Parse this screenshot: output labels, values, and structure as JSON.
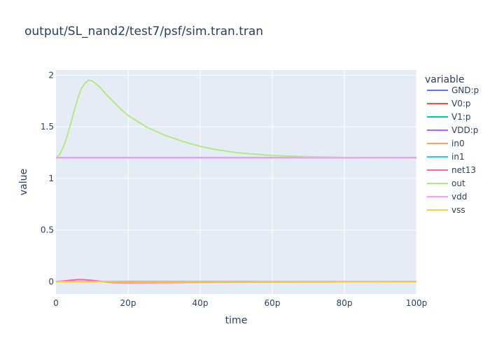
{
  "chart_data": {
    "type": "line",
    "title": "output/SL_nand2/test7/psf/sim.tran.tran",
    "xlabel": "time",
    "ylabel": "value",
    "xlim": [
      0,
      100
    ],
    "ylim": [
      -0.12,
      2.05
    ],
    "x_ticks": [
      {
        "value": 0,
        "label": "0"
      },
      {
        "value": 20,
        "label": "20p"
      },
      {
        "value": 40,
        "label": "40p"
      },
      {
        "value": 60,
        "label": "60p"
      },
      {
        "value": 80,
        "label": "80p"
      },
      {
        "value": 100,
        "label": "100p"
      }
    ],
    "y_ticks": [
      {
        "value": 0,
        "label": "0"
      },
      {
        "value": 0.5,
        "label": "0.5"
      },
      {
        "value": 1,
        "label": "1"
      },
      {
        "value": 1.5,
        "label": "1.5"
      },
      {
        "value": 2,
        "label": "2"
      }
    ],
    "grid": true,
    "legend_title": "variable",
    "legend_position": "right",
    "series": [
      {
        "name": "GND:p",
        "color": "#636efa",
        "x": [
          0,
          100
        ],
        "y": [
          0,
          0
        ]
      },
      {
        "name": "V0:p",
        "color": "#EF553B",
        "x": [
          0,
          100
        ],
        "y": [
          1.2,
          1.2
        ]
      },
      {
        "name": "V1:p",
        "color": "#00cc96",
        "x": [
          0,
          100
        ],
        "y": [
          1.2,
          1.2
        ]
      },
      {
        "name": "VDD:p",
        "color": "#ab63fa",
        "x": [
          0,
          100
        ],
        "y": [
          1.2,
          1.2
        ]
      },
      {
        "name": "in0",
        "color": "#FFA15A",
        "x": [
          0,
          100
        ],
        "y": [
          1.2,
          1.2
        ]
      },
      {
        "name": "in1",
        "color": "#19d3f3",
        "x": [
          0,
          100
        ],
        "y": [
          1.2,
          1.2
        ]
      },
      {
        "name": "net13",
        "color": "#FF6692",
        "x": [
          0,
          3,
          6,
          8,
          10,
          12,
          14,
          16,
          20,
          30,
          50,
          100
        ],
        "y": [
          0,
          0.01,
          0.02,
          0.018,
          0.012,
          0.005,
          -0.005,
          -0.008,
          -0.01,
          -0.008,
          -0.005,
          0
        ]
      },
      {
        "name": "out",
        "color": "#B6E880",
        "x": [
          0,
          1,
          2,
          3,
          4,
          5,
          6,
          7,
          8,
          9,
          10,
          12,
          14,
          16,
          18,
          20,
          25,
          30,
          35,
          40,
          45,
          50,
          55,
          60,
          70,
          80,
          90,
          100
        ],
        "y": [
          1.2,
          1.23,
          1.3,
          1.4,
          1.52,
          1.65,
          1.77,
          1.87,
          1.92,
          1.95,
          1.945,
          1.89,
          1.81,
          1.74,
          1.67,
          1.61,
          1.5,
          1.42,
          1.36,
          1.31,
          1.275,
          1.25,
          1.235,
          1.222,
          1.21,
          1.203,
          1.201,
          1.2
        ]
      },
      {
        "name": "vdd",
        "color": "#FF97FF",
        "x": [
          0,
          100
        ],
        "y": [
          1.2,
          1.2
        ]
      },
      {
        "name": "vss",
        "color": "#FECB52",
        "x": [
          0,
          10,
          20,
          50,
          100
        ],
        "y": [
          0,
          0,
          -0.003,
          -0.002,
          0
        ]
      }
    ]
  }
}
